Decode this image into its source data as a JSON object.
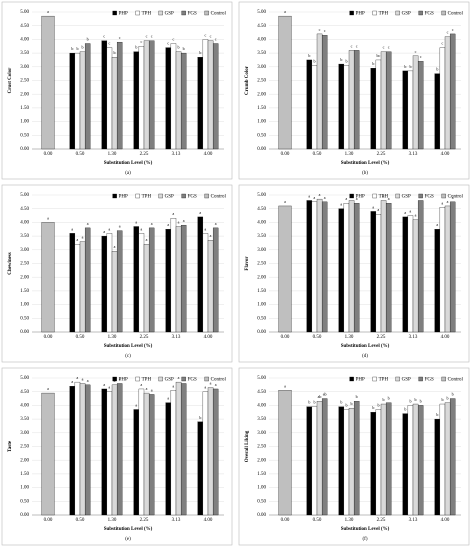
{
  "chart_data": [
    {
      "type": "bar",
      "panel": "(a)",
      "ylabel": "Crust Color",
      "xlabel": "Substitution Level (%)",
      "categories": [
        "0.00",
        "0.50",
        "1.30",
        "2.25",
        "3.13",
        "4.00"
      ],
      "ylim": [
        0,
        5
      ],
      "yticks": [
        {
          "value": 0,
          "label": "0.00"
        },
        {
          "value": 0.5,
          "label": "0.50"
        },
        {
          "value": 1,
          "label": "1.00"
        },
        {
          "value": 1.5,
          "label": "1.50"
        },
        {
          "value": 2,
          "label": "2.00"
        },
        {
          "value": 2.5,
          "label": "2.50"
        },
        {
          "value": 3,
          "label": "3.00"
        },
        {
          "value": 3.5,
          "label": "3.50"
        },
        {
          "value": 4,
          "label": "4.00"
        },
        {
          "value": 4.5,
          "label": "4.50"
        },
        {
          "value": 5,
          "label": "5.00"
        }
      ],
      "series": [
        {
          "name": "PHP",
          "color": "#000000",
          "values": [
            null,
            3.5,
            3.95,
            3.55,
            3.7,
            3.35
          ],
          "letters": [
            null,
            "b",
            "c",
            "b",
            "c",
            "b"
          ]
        },
        {
          "name": "TPH",
          "color": "#ffffff",
          "values": [
            null,
            3.5,
            3.7,
            3.75,
            3.85,
            4.0
          ],
          "letters": [
            null,
            "b",
            "c",
            "c",
            "c",
            "c"
          ]
        },
        {
          "name": "GSP",
          "color": "#d9d9d9",
          "values": [
            null,
            3.55,
            3.35,
            3.95,
            3.55,
            3.95
          ],
          "letters": [
            null,
            "b",
            "b",
            "c",
            "b",
            "c"
          ]
        },
        {
          "name": "FGS",
          "color": "#7f7f7f",
          "values": [
            null,
            3.85,
            3.9,
            3.95,
            3.5,
            3.85
          ],
          "letters": [
            null,
            "b",
            "c",
            "c",
            "b",
            "c"
          ]
        },
        {
          "name": "Control",
          "color": "#bfbfbf",
          "values": [
            4.85,
            null,
            null,
            null,
            null,
            null
          ],
          "letters": [
            "a",
            null,
            null,
            null,
            null,
            null
          ]
        }
      ]
    },
    {
      "type": "bar",
      "panel": "(b)",
      "ylabel": "Crumb Color",
      "xlabel": "Substitution Level (%)",
      "categories": [
        "0.00",
        "0.50",
        "1.30",
        "2.25",
        "3.13",
        "4.00"
      ],
      "ylim": [
        0,
        5
      ],
      "yticks": [
        {
          "value": 0,
          "label": "0.00"
        },
        {
          "value": 0.5,
          "label": "0.50"
        },
        {
          "value": 1,
          "label": "1.00"
        },
        {
          "value": 1.5,
          "label": "1.50"
        },
        {
          "value": 2,
          "label": "2.00"
        },
        {
          "value": 2.5,
          "label": "2.50"
        },
        {
          "value": 3,
          "label": "3.00"
        },
        {
          "value": 3.5,
          "label": "3.50"
        },
        {
          "value": 4,
          "label": "4.00"
        },
        {
          "value": 4.5,
          "label": "4.50"
        },
        {
          "value": 5,
          "label": "5.00"
        }
      ],
      "series": [
        {
          "name": "PHP",
          "color": "#000000",
          "values": [
            null,
            3.25,
            3.1,
            2.95,
            2.85,
            2.75
          ],
          "letters": [
            null,
            "b",
            "b",
            "b",
            "b",
            "b"
          ]
        },
        {
          "name": "TPH",
          "color": "#ffffff",
          "values": [
            null,
            3.05,
            3.05,
            3.25,
            2.85,
            3.7
          ],
          "letters": [
            null,
            "b",
            "b",
            "bc",
            "b",
            "c"
          ]
        },
        {
          "name": "GSP",
          "color": "#d9d9d9",
          "values": [
            null,
            4.2,
            3.6,
            3.55,
            3.4,
            4.1
          ],
          "letters": [
            null,
            "c",
            "c",
            "c",
            "c",
            "c"
          ]
        },
        {
          "name": "FGS",
          "color": "#7f7f7f",
          "values": [
            null,
            4.15,
            3.6,
            3.55,
            3.2,
            4.2
          ],
          "letters": [
            null,
            "c",
            "c",
            "c",
            "c",
            "c"
          ]
        },
        {
          "name": "Control",
          "color": "#bfbfbf",
          "values": [
            4.85,
            null,
            null,
            null,
            null,
            null
          ],
          "letters": [
            "a",
            null,
            null,
            null,
            null,
            null
          ]
        }
      ]
    },
    {
      "type": "bar",
      "panel": "(c)",
      "ylabel": "Chewiness",
      "xlabel": "Substitution Level (%)",
      "categories": [
        "0.00",
        "0.50",
        "1.30",
        "2.25",
        "3.13",
        "4.00"
      ],
      "ylim": [
        0,
        5
      ],
      "yticks": [
        {
          "value": 0,
          "label": "0.00"
        },
        {
          "value": 0.5,
          "label": "0.50"
        },
        {
          "value": 1,
          "label": "1.00"
        },
        {
          "value": 1.5,
          "label": "1.50"
        },
        {
          "value": 2,
          "label": "2.00"
        },
        {
          "value": 2.5,
          "label": "2.50"
        },
        {
          "value": 3,
          "label": "3.00"
        },
        {
          "value": 3.5,
          "label": "3.50"
        },
        {
          "value": 4,
          "label": "4.00"
        },
        {
          "value": 4.5,
          "label": "4.50"
        },
        {
          "value": 5,
          "label": "5.00"
        }
      ],
      "series": [
        {
          "name": "PHP",
          "color": "#000000",
          "values": [
            null,
            3.6,
            3.5,
            3.85,
            3.75,
            4.2
          ],
          "letters": [
            null,
            "a",
            "a",
            "a",
            "a",
            "a"
          ]
        },
        {
          "name": "TPH",
          "color": "#ffffff",
          "values": [
            null,
            3.2,
            3.6,
            3.6,
            4.15,
            3.6
          ],
          "letters": [
            null,
            "a",
            "a",
            "a",
            "a",
            "a"
          ]
        },
        {
          "name": "GSP",
          "color": "#d9d9d9",
          "values": [
            null,
            3.3,
            2.95,
            3.2,
            3.85,
            3.35
          ],
          "letters": [
            null,
            "a",
            "a",
            "a",
            "a",
            "a"
          ]
        },
        {
          "name": "FGS",
          "color": "#7f7f7f",
          "values": [
            null,
            3.8,
            3.7,
            3.8,
            3.9,
            3.8
          ],
          "letters": [
            null,
            "a",
            "a",
            "a",
            "a",
            "a"
          ]
        },
        {
          "name": "Control",
          "color": "#bfbfbf",
          "values": [
            4.0,
            null,
            null,
            null,
            null,
            null
          ],
          "letters": [
            "a",
            null,
            null,
            null,
            null,
            null
          ]
        }
      ]
    },
    {
      "type": "bar",
      "panel": "(d)",
      "ylabel": "Flavor",
      "xlabel": "Substitution Level (%)",
      "categories": [
        "0.00",
        "0.50",
        "1.30",
        "2.25",
        "3.13",
        "4.00"
      ],
      "ylim": [
        0,
        5
      ],
      "yticks": [
        {
          "value": 0,
          "label": "0.00"
        },
        {
          "value": 0.5,
          "label": "0.50"
        },
        {
          "value": 1,
          "label": "1.00"
        },
        {
          "value": 1.5,
          "label": "1.50"
        },
        {
          "value": 2,
          "label": "2.00"
        },
        {
          "value": 2.5,
          "label": "2.50"
        },
        {
          "value": 3,
          "label": "3.00"
        },
        {
          "value": 3.5,
          "label": "3.50"
        },
        {
          "value": 4,
          "label": "4.00"
        },
        {
          "value": 4.5,
          "label": "4.50"
        },
        {
          "value": 5,
          "label": "5.00"
        }
      ],
      "series": [
        {
          "name": "PHP",
          "color": "#000000",
          "values": [
            null,
            4.8,
            4.5,
            4.4,
            4.2,
            3.75
          ],
          "letters": [
            null,
            "a",
            "a",
            "a",
            "a",
            "a"
          ]
        },
        {
          "name": "TPH",
          "color": "#ffffff",
          "values": [
            null,
            4.75,
            4.7,
            4.3,
            4.25,
            4.55
          ],
          "letters": [
            null,
            "a",
            "a",
            "a",
            "a",
            "a"
          ]
        },
        {
          "name": "GSP",
          "color": "#d9d9d9",
          "values": [
            null,
            4.85,
            4.8,
            4.8,
            4.1,
            4.6
          ],
          "letters": [
            null,
            "a",
            "a",
            "a",
            "a",
            "a"
          ]
        },
        {
          "name": "FGS",
          "color": "#7f7f7f",
          "values": [
            null,
            4.75,
            4.7,
            4.7,
            4.8,
            4.75
          ],
          "letters": [
            null,
            "a",
            "a",
            "a",
            "a",
            "a"
          ]
        },
        {
          "name": "Control",
          "color": "#bfbfbf",
          "values": [
            4.6,
            null,
            null,
            null,
            null,
            null
          ],
          "letters": [
            "a",
            null,
            null,
            null,
            null,
            null
          ]
        }
      ]
    },
    {
      "type": "bar",
      "panel": "(e)",
      "ylabel": "Taste",
      "xlabel": "Substitution Level (%)",
      "categories": [
        "0.00",
        "0.50",
        "1.30",
        "2.25",
        "3.13",
        "4.00"
      ],
      "ylim": [
        0,
        5
      ],
      "yticks": [
        {
          "value": 0,
          "label": "0.00"
        },
        {
          "value": 0.5,
          "label": "0.50"
        },
        {
          "value": 1,
          "label": "1.00"
        },
        {
          "value": 1.5,
          "label": "1.50"
        },
        {
          "value": 2,
          "label": "2.00"
        },
        {
          "value": 2.5,
          "label": "2.50"
        },
        {
          "value": 3,
          "label": "3.00"
        },
        {
          "value": 3.5,
          "label": "3.50"
        },
        {
          "value": 4,
          "label": "4.00"
        },
        {
          "value": 4.5,
          "label": "4.50"
        },
        {
          "value": 5,
          "label": "5.00"
        }
      ],
      "series": [
        {
          "name": "PHP",
          "color": "#000000",
          "values": [
            null,
            4.7,
            4.6,
            3.85,
            4.1,
            3.4
          ],
          "letters": [
            null,
            "a",
            "a",
            "a",
            "a",
            "b"
          ]
        },
        {
          "name": "TPH",
          "color": "#ffffff",
          "values": [
            null,
            4.85,
            4.5,
            4.6,
            4.55,
            4.5
          ],
          "letters": [
            null,
            "a",
            "a",
            "a",
            "a",
            "a"
          ]
        },
        {
          "name": "GSP",
          "color": "#d9d9d9",
          "values": [
            null,
            4.8,
            4.75,
            4.45,
            4.85,
            4.65
          ],
          "letters": [
            null,
            "a",
            "a",
            "a",
            "a",
            "a"
          ]
        },
        {
          "name": "FGS",
          "color": "#7f7f7f",
          "values": [
            null,
            4.75,
            4.8,
            4.4,
            4.8,
            4.6
          ],
          "letters": [
            null,
            "a",
            "a",
            "a",
            "a",
            "a"
          ]
        },
        {
          "name": "Control",
          "color": "#bfbfbf",
          "values": [
            4.45,
            null,
            null,
            null,
            null,
            null
          ],
          "letters": [
            "a",
            null,
            null,
            null,
            null,
            null
          ]
        }
      ]
    },
    {
      "type": "bar",
      "panel": "(f)",
      "ylabel": "Overall Liking",
      "xlabel": "Substitution Level (%)",
      "categories": [
        "0.00",
        "0.50",
        "1.30",
        "2.25",
        "3.13",
        "4.00"
      ],
      "ylim": [
        0,
        5
      ],
      "yticks": [
        {
          "value": 0,
          "label": "0.00"
        },
        {
          "value": 0.5,
          "label": "0.50"
        },
        {
          "value": 1,
          "label": "1.00"
        },
        {
          "value": 1.5,
          "label": "1.50"
        },
        {
          "value": 2,
          "label": "2.00"
        },
        {
          "value": 2.5,
          "label": "2.50"
        },
        {
          "value": 3,
          "label": "3.00"
        },
        {
          "value": 3.5,
          "label": "3.50"
        },
        {
          "value": 4,
          "label": "4.00"
        },
        {
          "value": 4.5,
          "label": "4.50"
        },
        {
          "value": 5,
          "label": "5.00"
        }
      ],
      "series": [
        {
          "name": "PHP",
          "color": "#000000",
          "values": [
            null,
            3.95,
            3.95,
            3.75,
            3.7,
            3.5
          ],
          "letters": [
            null,
            "b",
            "b",
            "b",
            "b",
            "b"
          ]
        },
        {
          "name": "TPH",
          "color": "#ffffff",
          "values": [
            null,
            3.95,
            3.85,
            3.85,
            4.0,
            4.05
          ],
          "letters": [
            null,
            "b",
            "b",
            "b",
            "b",
            "b"
          ]
        },
        {
          "name": "GSP",
          "color": "#d9d9d9",
          "values": [
            null,
            4.15,
            3.9,
            4.05,
            4.05,
            4.1
          ],
          "letters": [
            null,
            "ab",
            "b",
            "b",
            "b",
            "b"
          ]
        },
        {
          "name": "FGS",
          "color": "#7f7f7f",
          "values": [
            null,
            4.25,
            4.15,
            4.1,
            4.0,
            4.25
          ],
          "letters": [
            null,
            "ab",
            "b",
            "b",
            "b",
            "b"
          ]
        },
        {
          "name": "Control",
          "color": "#bfbfbf",
          "values": [
            4.55,
            null,
            null,
            null,
            null,
            null
          ],
          "letters": [
            "a",
            null,
            null,
            null,
            null,
            null
          ]
        }
      ]
    }
  ]
}
